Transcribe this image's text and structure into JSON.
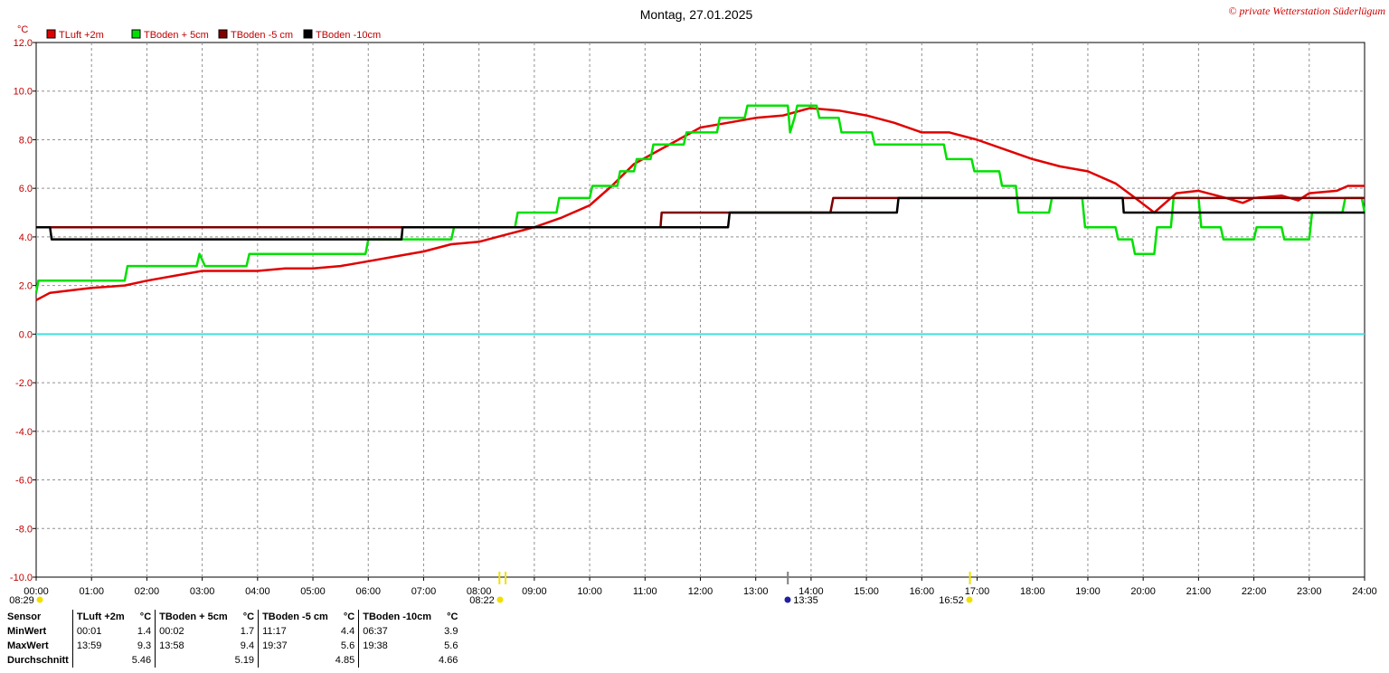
{
  "title": "Montag, 27.01.2025",
  "credit": "© private Wetterstation Süderlügum",
  "unit": "°C",
  "chart_data": {
    "type": "line",
    "ylim": [
      -10,
      12
    ],
    "xlim": [
      0,
      24
    ],
    "y_ticks": [
      "12.0",
      "10.0",
      "8.0",
      "6.0",
      "4.0",
      "2.0",
      "0.0",
      "-2.0",
      "-4.0",
      "-6.0",
      "-8.0",
      "-10.0"
    ],
    "x_ticks": [
      "00:00",
      "01:00",
      "02:00",
      "03:00",
      "04:00",
      "05:00",
      "06:00",
      "07:00",
      "08:00",
      "09:00",
      "10:00",
      "11:00",
      "12:00",
      "13:00",
      "14:00",
      "15:00",
      "16:00",
      "17:00",
      "18:00",
      "19:00",
      "20:00",
      "21:00",
      "22:00",
      "23:00",
      "24:00"
    ],
    "grid": true,
    "zero_line_color": "#40e0e0",
    "series": [
      {
        "name": "TLuft +2m",
        "color": "#e00000",
        "points": [
          [
            0,
            1.4
          ],
          [
            0.25,
            1.7
          ],
          [
            1,
            1.9
          ],
          [
            1.6,
            2.0
          ],
          [
            2,
            2.2
          ],
          [
            2.5,
            2.4
          ],
          [
            3,
            2.6
          ],
          [
            3.5,
            2.6
          ],
          [
            4,
            2.6
          ],
          [
            4.5,
            2.7
          ],
          [
            5,
            2.7
          ],
          [
            5.5,
            2.8
          ],
          [
            6,
            3.0
          ],
          [
            6.5,
            3.2
          ],
          [
            7,
            3.4
          ],
          [
            7.5,
            3.7
          ],
          [
            8,
            3.8
          ],
          [
            8.5,
            4.1
          ],
          [
            9,
            4.4
          ],
          [
            9.5,
            4.8
          ],
          [
            10,
            5.3
          ],
          [
            10.4,
            6.1
          ],
          [
            10.8,
            7.0
          ],
          [
            11.2,
            7.5
          ],
          [
            11.6,
            8.0
          ],
          [
            12,
            8.5
          ],
          [
            12.5,
            8.7
          ],
          [
            13,
            8.9
          ],
          [
            13.5,
            9.0
          ],
          [
            13.98,
            9.3
          ],
          [
            14.5,
            9.2
          ],
          [
            15,
            9.0
          ],
          [
            15.5,
            8.7
          ],
          [
            16,
            8.3
          ],
          [
            16.5,
            8.3
          ],
          [
            17,
            8.0
          ],
          [
            17.5,
            7.6
          ],
          [
            18,
            7.2
          ],
          [
            18.5,
            6.9
          ],
          [
            19,
            6.7
          ],
          [
            19.5,
            6.2
          ],
          [
            19.8,
            5.7
          ],
          [
            20.2,
            5.0
          ],
          [
            20.6,
            5.8
          ],
          [
            21,
            5.9
          ],
          [
            21.5,
            5.6
          ],
          [
            21.8,
            5.4
          ],
          [
            22,
            5.6
          ],
          [
            22.5,
            5.7
          ],
          [
            22.8,
            5.5
          ],
          [
            23,
            5.8
          ],
          [
            23.5,
            5.9
          ],
          [
            23.7,
            6.1
          ],
          [
            24,
            6.1
          ]
        ]
      },
      {
        "name": "TBoden + 5cm",
        "color": "#00e000",
        "points": [
          [
            0,
            1.7
          ],
          [
            0.04,
            2.2
          ],
          [
            1.6,
            2.2
          ],
          [
            1.65,
            2.8
          ],
          [
            2.9,
            2.8
          ],
          [
            2.95,
            3.3
          ],
          [
            3.05,
            2.8
          ],
          [
            3.8,
            2.8
          ],
          [
            3.85,
            3.3
          ],
          [
            5.95,
            3.3
          ],
          [
            6,
            3.9
          ],
          [
            7.5,
            3.9
          ],
          [
            7.55,
            4.4
          ],
          [
            8.65,
            4.4
          ],
          [
            8.7,
            5.0
          ],
          [
            9.4,
            5.0
          ],
          [
            9.45,
            5.6
          ],
          [
            10,
            5.6
          ],
          [
            10.05,
            6.1
          ],
          [
            10.5,
            6.1
          ],
          [
            10.55,
            6.7
          ],
          [
            10.8,
            6.7
          ],
          [
            10.85,
            7.2
          ],
          [
            11.1,
            7.2
          ],
          [
            11.15,
            7.8
          ],
          [
            11.7,
            7.8
          ],
          [
            11.75,
            8.3
          ],
          [
            12.3,
            8.3
          ],
          [
            12.35,
            8.9
          ],
          [
            12.8,
            8.9
          ],
          [
            12.85,
            9.4
          ],
          [
            13.58,
            9.4
          ],
          [
            13.62,
            8.3
          ],
          [
            13.7,
            8.9
          ],
          [
            13.75,
            9.4
          ],
          [
            14.1,
            9.4
          ],
          [
            14.15,
            8.9
          ],
          [
            14.5,
            8.9
          ],
          [
            14.55,
            8.3
          ],
          [
            15.1,
            8.3
          ],
          [
            15.15,
            7.8
          ],
          [
            16.4,
            7.8
          ],
          [
            16.45,
            7.2
          ],
          [
            16.9,
            7.2
          ],
          [
            16.95,
            6.7
          ],
          [
            17.4,
            6.7
          ],
          [
            17.45,
            6.1
          ],
          [
            17.7,
            6.1
          ],
          [
            17.75,
            5.0
          ],
          [
            18.3,
            5.0
          ],
          [
            18.35,
            5.6
          ],
          [
            18.9,
            5.6
          ],
          [
            18.95,
            4.4
          ],
          [
            19.5,
            4.4
          ],
          [
            19.55,
            3.9
          ],
          [
            19.8,
            3.9
          ],
          [
            19.85,
            3.3
          ],
          [
            20.2,
            3.3
          ],
          [
            20.25,
            4.4
          ],
          [
            20.5,
            4.4
          ],
          [
            20.55,
            5.6
          ],
          [
            21,
            5.6
          ],
          [
            21.05,
            4.4
          ],
          [
            21.4,
            4.4
          ],
          [
            21.45,
            3.9
          ],
          [
            22,
            3.9
          ],
          [
            22.05,
            4.4
          ],
          [
            22.5,
            4.4
          ],
          [
            22.55,
            3.9
          ],
          [
            23,
            3.9
          ],
          [
            23.05,
            5.0
          ],
          [
            23.6,
            5.0
          ],
          [
            23.65,
            5.6
          ],
          [
            23.95,
            5.6
          ],
          [
            24,
            5.0
          ]
        ]
      },
      {
        "name": "TBoden -5 cm",
        "color": "#800000",
        "points": [
          [
            0,
            4.4
          ],
          [
            11.28,
            4.4
          ],
          [
            11.3,
            5.0
          ],
          [
            14.35,
            5.0
          ],
          [
            14.4,
            5.6
          ],
          [
            24,
            5.6
          ]
        ]
      },
      {
        "name": "TBoden -10cm",
        "color": "#000000",
        "points": [
          [
            0,
            4.4
          ],
          [
            0.25,
            4.4
          ],
          [
            0.28,
            3.9
          ],
          [
            6.6,
            3.9
          ],
          [
            6.62,
            4.4
          ],
          [
            12.5,
            4.4
          ],
          [
            12.53,
            5.0
          ],
          [
            15.55,
            5.0
          ],
          [
            15.58,
            5.6
          ],
          [
            19.63,
            5.6
          ],
          [
            19.65,
            5.0
          ],
          [
            24,
            5.0
          ]
        ]
      }
    ]
  },
  "sun_events": [
    {
      "time": "08:29",
      "hour": 8.48,
      "color": "#f0e000"
    },
    {
      "time": "08:22",
      "hour": 8.37,
      "color": "#f0e000"
    },
    {
      "time": "13:35",
      "hour": 13.58,
      "color": "#2020a0"
    },
    {
      "time": "16:52",
      "hour": 16.87,
      "color": "#f0e000"
    }
  ],
  "stats": {
    "row_labels": {
      "sensor": "Sensor",
      "min": "MinWert",
      "max": "MaxWert",
      "avg": "Durchschnitt"
    },
    "columns": [
      {
        "name": "TLuft +2m",
        "unit": "°C",
        "min_time": "00:01",
        "min": "1.4",
        "max_time": "13:59",
        "max": "9.3",
        "avg": "5.46"
      },
      {
        "name": "TBoden + 5cm",
        "unit": "°C",
        "min_time": "00:02",
        "min": "1.7",
        "max_time": "13:58",
        "max": "9.4",
        "avg": "5.19"
      },
      {
        "name": "TBoden -5 cm",
        "unit": "°C",
        "min_time": "11:17",
        "min": "4.4",
        "max_time": "19:37",
        "max": "5.6",
        "avg": "4.85"
      },
      {
        "name": "TBoden -10cm",
        "unit": "°C",
        "min_time": "06:37",
        "min": "3.9",
        "max_time": "19:38",
        "max": "5.6",
        "avg": "4.66"
      }
    ]
  }
}
